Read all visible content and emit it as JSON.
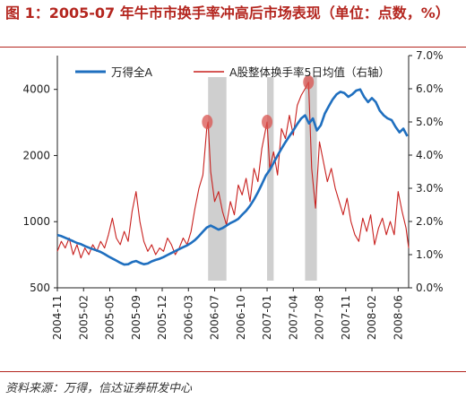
{
  "title": "图 1：2005-07 年牛市市换手率冲高后市场表现（单位：点数，%）",
  "source": "资料来源：万得，信达证券研发中心",
  "colors": {
    "accent": "#b4261f",
    "index_line": "#1f6fbf",
    "turnover_line": "#c8201e",
    "shade": "#cfcfcf",
    "marker": "#d9534f"
  },
  "chart_data": {
    "type": "line",
    "x_tick_labels": [
      "2004-11",
      "2005-02",
      "2005-05",
      "2005-09",
      "2005-12",
      "2006-03",
      "2006-07",
      "2006-10",
      "2007-01",
      "2007-04",
      "2007-08",
      "2007-11",
      "2008-02",
      "2008-06"
    ],
    "x_range": [
      0,
      13.4
    ],
    "y_left": {
      "scale": "log",
      "ticks": [
        "500",
        "1000",
        "2000",
        "4000"
      ],
      "tick_values": [
        500,
        1000,
        2000,
        4000
      ],
      "range": [
        500,
        5700
      ]
    },
    "y_right": {
      "ticks": [
        "0.0%",
        "1.0%",
        "2.0%",
        "3.0%",
        "4.0%",
        "5.0%",
        "6.0%",
        "7.0%"
      ],
      "tick_values": [
        0,
        1,
        2,
        3,
        4,
        5,
        6,
        7
      ],
      "range": [
        0,
        7
      ]
    },
    "legend_position": "top",
    "shaded_periods": [
      [
        5.75,
        6.45
      ],
      [
        8.0,
        8.25
      ],
      [
        9.45,
        9.9
      ]
    ],
    "highlight_points": [
      [
        5.72,
        5.0
      ],
      [
        8.0,
        5.0
      ],
      [
        9.58,
        6.2
      ]
    ],
    "series": [
      {
        "name": "万得全A",
        "axis": "left",
        "points": [
          [
            0.0,
            870
          ],
          [
            0.15,
            860
          ],
          [
            0.3,
            845
          ],
          [
            0.45,
            830
          ],
          [
            0.6,
            815
          ],
          [
            0.75,
            800
          ],
          [
            0.9,
            790
          ],
          [
            1.05,
            775
          ],
          [
            1.2,
            762
          ],
          [
            1.35,
            750
          ],
          [
            1.5,
            740
          ],
          [
            1.65,
            728
          ],
          [
            1.8,
            712
          ],
          [
            1.95,
            695
          ],
          [
            2.1,
            680
          ],
          [
            2.25,
            665
          ],
          [
            2.4,
            650
          ],
          [
            2.55,
            638
          ],
          [
            2.7,
            640
          ],
          [
            2.85,
            655
          ],
          [
            3.0,
            662
          ],
          [
            3.15,
            650
          ],
          [
            3.3,
            640
          ],
          [
            3.45,
            645
          ],
          [
            3.6,
            660
          ],
          [
            3.75,
            670
          ],
          [
            3.9,
            678
          ],
          [
            4.05,
            690
          ],
          [
            4.2,
            705
          ],
          [
            4.35,
            720
          ],
          [
            4.5,
            735
          ],
          [
            4.65,
            750
          ],
          [
            4.8,
            765
          ],
          [
            4.95,
            780
          ],
          [
            5.1,
            800
          ],
          [
            5.25,
            825
          ],
          [
            5.4,
            860
          ],
          [
            5.55,
            900
          ],
          [
            5.7,
            940
          ],
          [
            5.85,
            960
          ],
          [
            6.0,
            940
          ],
          [
            6.15,
            920
          ],
          [
            6.3,
            935
          ],
          [
            6.45,
            960
          ],
          [
            6.6,
            985
          ],
          [
            6.75,
            1005
          ],
          [
            6.9,
            1030
          ],
          [
            7.05,
            1075
          ],
          [
            7.2,
            1120
          ],
          [
            7.35,
            1180
          ],
          [
            7.5,
            1260
          ],
          [
            7.65,
            1360
          ],
          [
            7.8,
            1480
          ],
          [
            7.95,
            1620
          ],
          [
            8.1,
            1720
          ],
          [
            8.25,
            1850
          ],
          [
            8.4,
            2000
          ],
          [
            8.55,
            2150
          ],
          [
            8.7,
            2300
          ],
          [
            8.85,
            2450
          ],
          [
            9.0,
            2600
          ],
          [
            9.15,
            2780
          ],
          [
            9.3,
            2950
          ],
          [
            9.45,
            3050
          ],
          [
            9.6,
            2800
          ],
          [
            9.75,
            2950
          ],
          [
            9.9,
            2600
          ],
          [
            10.05,
            2750
          ],
          [
            10.2,
            3100
          ],
          [
            10.35,
            3350
          ],
          [
            10.5,
            3600
          ],
          [
            10.65,
            3800
          ],
          [
            10.8,
            3900
          ],
          [
            10.95,
            3850
          ],
          [
            11.1,
            3700
          ],
          [
            11.25,
            3800
          ],
          [
            11.4,
            3950
          ],
          [
            11.55,
            4000
          ],
          [
            11.7,
            3700
          ],
          [
            11.85,
            3500
          ],
          [
            12.0,
            3650
          ],
          [
            12.15,
            3500
          ],
          [
            12.3,
            3200
          ],
          [
            12.45,
            3050
          ],
          [
            12.6,
            2950
          ],
          [
            12.75,
            2900
          ],
          [
            12.9,
            2700
          ],
          [
            13.05,
            2550
          ],
          [
            13.2,
            2650
          ],
          [
            13.35,
            2450
          ]
        ]
      },
      {
        "name": "A股整体换手率5日均值（右轴）",
        "axis": "right",
        "points": [
          [
            0.0,
            1.1
          ],
          [
            0.15,
            1.4
          ],
          [
            0.3,
            1.2
          ],
          [
            0.45,
            1.5
          ],
          [
            0.6,
            1.0
          ],
          [
            0.75,
            1.3
          ],
          [
            0.9,
            0.9
          ],
          [
            1.05,
            1.2
          ],
          [
            1.2,
            1.0
          ],
          [
            1.35,
            1.3
          ],
          [
            1.5,
            1.1
          ],
          [
            1.65,
            1.4
          ],
          [
            1.8,
            1.2
          ],
          [
            1.95,
            1.6
          ],
          [
            2.1,
            2.1
          ],
          [
            2.25,
            1.5
          ],
          [
            2.4,
            1.3
          ],
          [
            2.55,
            1.7
          ],
          [
            2.7,
            1.4
          ],
          [
            2.85,
            2.3
          ],
          [
            3.0,
            2.9
          ],
          [
            3.15,
            2.0
          ],
          [
            3.3,
            1.4
          ],
          [
            3.45,
            1.1
          ],
          [
            3.6,
            1.3
          ],
          [
            3.75,
            1.0
          ],
          [
            3.9,
            1.2
          ],
          [
            4.05,
            1.1
          ],
          [
            4.2,
            1.5
          ],
          [
            4.35,
            1.3
          ],
          [
            4.5,
            1.0
          ],
          [
            4.65,
            1.2
          ],
          [
            4.8,
            1.5
          ],
          [
            4.95,
            1.3
          ],
          [
            5.1,
            1.7
          ],
          [
            5.25,
            2.4
          ],
          [
            5.4,
            3.0
          ],
          [
            5.55,
            3.4
          ],
          [
            5.7,
            4.8
          ],
          [
            5.75,
            5.0
          ],
          [
            5.85,
            3.5
          ],
          [
            6.0,
            2.6
          ],
          [
            6.15,
            2.9
          ],
          [
            6.3,
            2.3
          ],
          [
            6.45,
            1.9
          ],
          [
            6.6,
            2.6
          ],
          [
            6.75,
            2.2
          ],
          [
            6.9,
            3.1
          ],
          [
            7.05,
            2.8
          ],
          [
            7.2,
            3.3
          ],
          [
            7.35,
            2.6
          ],
          [
            7.5,
            3.6
          ],
          [
            7.65,
            3.2
          ],
          [
            7.8,
            4.2
          ],
          [
            7.95,
            4.8
          ],
          [
            8.0,
            5.0
          ],
          [
            8.1,
            3.6
          ],
          [
            8.25,
            4.1
          ],
          [
            8.4,
            3.4
          ],
          [
            8.55,
            4.8
          ],
          [
            8.7,
            4.5
          ],
          [
            8.85,
            5.2
          ],
          [
            9.0,
            4.6
          ],
          [
            9.15,
            5.5
          ],
          [
            9.3,
            5.8
          ],
          [
            9.45,
            6.0
          ],
          [
            9.58,
            6.2
          ],
          [
            9.7,
            3.6
          ],
          [
            9.85,
            2.4
          ],
          [
            10.0,
            4.4
          ],
          [
            10.15,
            3.8
          ],
          [
            10.3,
            3.2
          ],
          [
            10.45,
            3.6
          ],
          [
            10.6,
            3.0
          ],
          [
            10.75,
            2.6
          ],
          [
            10.9,
            2.2
          ],
          [
            11.05,
            2.7
          ],
          [
            11.2,
            2.0
          ],
          [
            11.35,
            1.6
          ],
          [
            11.5,
            1.4
          ],
          [
            11.65,
            2.1
          ],
          [
            11.8,
            1.7
          ],
          [
            11.95,
            2.2
          ],
          [
            12.1,
            1.3
          ],
          [
            12.25,
            1.8
          ],
          [
            12.4,
            2.1
          ],
          [
            12.55,
            1.6
          ],
          [
            12.7,
            2.0
          ],
          [
            12.85,
            1.6
          ],
          [
            13.0,
            2.9
          ],
          [
            13.15,
            2.3
          ],
          [
            13.3,
            1.8
          ],
          [
            13.4,
            1.2
          ]
        ]
      }
    ]
  }
}
